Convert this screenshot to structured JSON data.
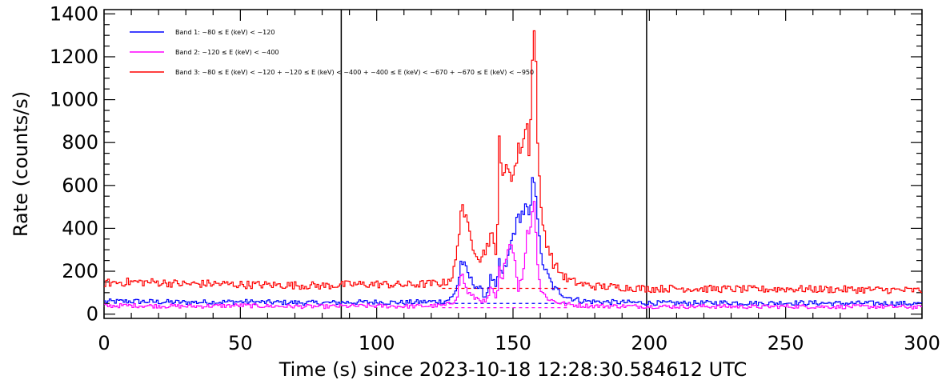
{
  "chart_data": {
    "type": "line",
    "xlabel": "Time (s) since 2023-10-18 12:28:30.584612 UTC",
    "ylabel": "Rate (counts/s)",
    "xlim": [
      0,
      300
    ],
    "ylim": [
      -20,
      1420
    ],
    "x_ticks": [
      0,
      50,
      100,
      150,
      200,
      250,
      300
    ],
    "x_tick_labels": [
      "0",
      "50",
      "100",
      "150",
      "200",
      "250",
      "300"
    ],
    "y_ticks": [
      0,
      200,
      400,
      600,
      800,
      1000,
      1200,
      1400
    ],
    "y_tick_labels": [
      "0",
      "200",
      "400",
      "600",
      "800",
      "1000",
      "1200",
      "1400"
    ],
    "grid": false,
    "legend_position": "top-left",
    "vertical_lines": [
      87,
      199
    ],
    "series": [
      {
        "name": "Band 1: ~80 ≤ E (keV) < ~120",
        "color": "#0000ff",
        "style": "step",
        "x": [
          0,
          10,
          20,
          30,
          40,
          50,
          60,
          70,
          80,
          90,
          100,
          110,
          120,
          125,
          128,
          130,
          131,
          133,
          135,
          138,
          140,
          142,
          144,
          145,
          146,
          148,
          150,
          152,
          154,
          155,
          156,
          157,
          158,
          159,
          160,
          162,
          165,
          170,
          175,
          180,
          190,
          200,
          210,
          220,
          230,
          240,
          250,
          260,
          270,
          280,
          290,
          300
        ],
        "values": [
          58,
          60,
          57,
          55,
          56,
          58,
          55,
          54,
          52,
          55,
          56,
          54,
          58,
          60,
          80,
          150,
          255,
          200,
          150,
          115,
          80,
          180,
          110,
          250,
          175,
          250,
          370,
          450,
          480,
          500,
          420,
          600,
          650,
          470,
          280,
          200,
          120,
          80,
          62,
          58,
          55,
          52,
          51,
          52,
          54,
          50,
          53,
          52,
          50,
          51,
          50,
          48
        ],
        "background_level": 50
      },
      {
        "name": "Band 2: ~120 ≤ E (keV) < ~400",
        "color": "#ff00ff",
        "style": "step",
        "x": [
          0,
          10,
          20,
          30,
          40,
          50,
          60,
          70,
          80,
          90,
          100,
          110,
          120,
          125,
          128,
          130,
          131,
          133,
          135,
          138,
          140,
          142,
          144,
          145,
          146,
          148,
          150,
          152,
          154,
          155,
          156,
          157,
          158,
          159,
          160,
          162,
          165,
          170,
          175,
          180,
          190,
          200,
          210,
          220,
          230,
          240,
          250,
          260,
          270,
          280,
          290,
          300
        ],
        "values": [
          38,
          40,
          38,
          36,
          38,
          40,
          37,
          36,
          35,
          37,
          38,
          36,
          38,
          40,
          55,
          100,
          200,
          110,
          80,
          70,
          50,
          120,
          60,
          210,
          130,
          330,
          320,
          120,
          200,
          390,
          380,
          480,
          520,
          250,
          120,
          80,
          60,
          45,
          40,
          38,
          37,
          36,
          35,
          36,
          35,
          34,
          36,
          35,
          34,
          35,
          34,
          32
        ],
        "background_level": 30
      },
      {
        "name": "Band 3: ~80 ≤ E (keV) < ~120 + ~120 ≤ E (keV) < ~400 + ~400 ≤ E (keV) < ~670 + ~670 ≤ E (keV) < ~950",
        "color": "#ff0000",
        "style": "step",
        "x": [
          0,
          10,
          20,
          30,
          40,
          50,
          60,
          70,
          80,
          90,
          100,
          110,
          120,
          125,
          128,
          130,
          131,
          133,
          135,
          138,
          140,
          142,
          144,
          145,
          146,
          148,
          150,
          152,
          154,
          155,
          156,
          157,
          158,
          159,
          160,
          162,
          165,
          170,
          175,
          180,
          190,
          200,
          210,
          220,
          230,
          240,
          250,
          260,
          270,
          280,
          290,
          300
        ],
        "values": [
          145,
          150,
          148,
          140,
          142,
          138,
          136,
          135,
          132,
          138,
          140,
          136,
          142,
          145,
          180,
          330,
          540,
          420,
          330,
          260,
          300,
          380,
          250,
          880,
          600,
          700,
          640,
          760,
          820,
          900,
          750,
          1150,
          1370,
          850,
          500,
          350,
          230,
          160,
          140,
          130,
          125,
          118,
          120,
          118,
          117,
          115,
          118,
          116,
          115,
          114,
          112,
          110
        ],
        "background_level": 120
      }
    ]
  }
}
